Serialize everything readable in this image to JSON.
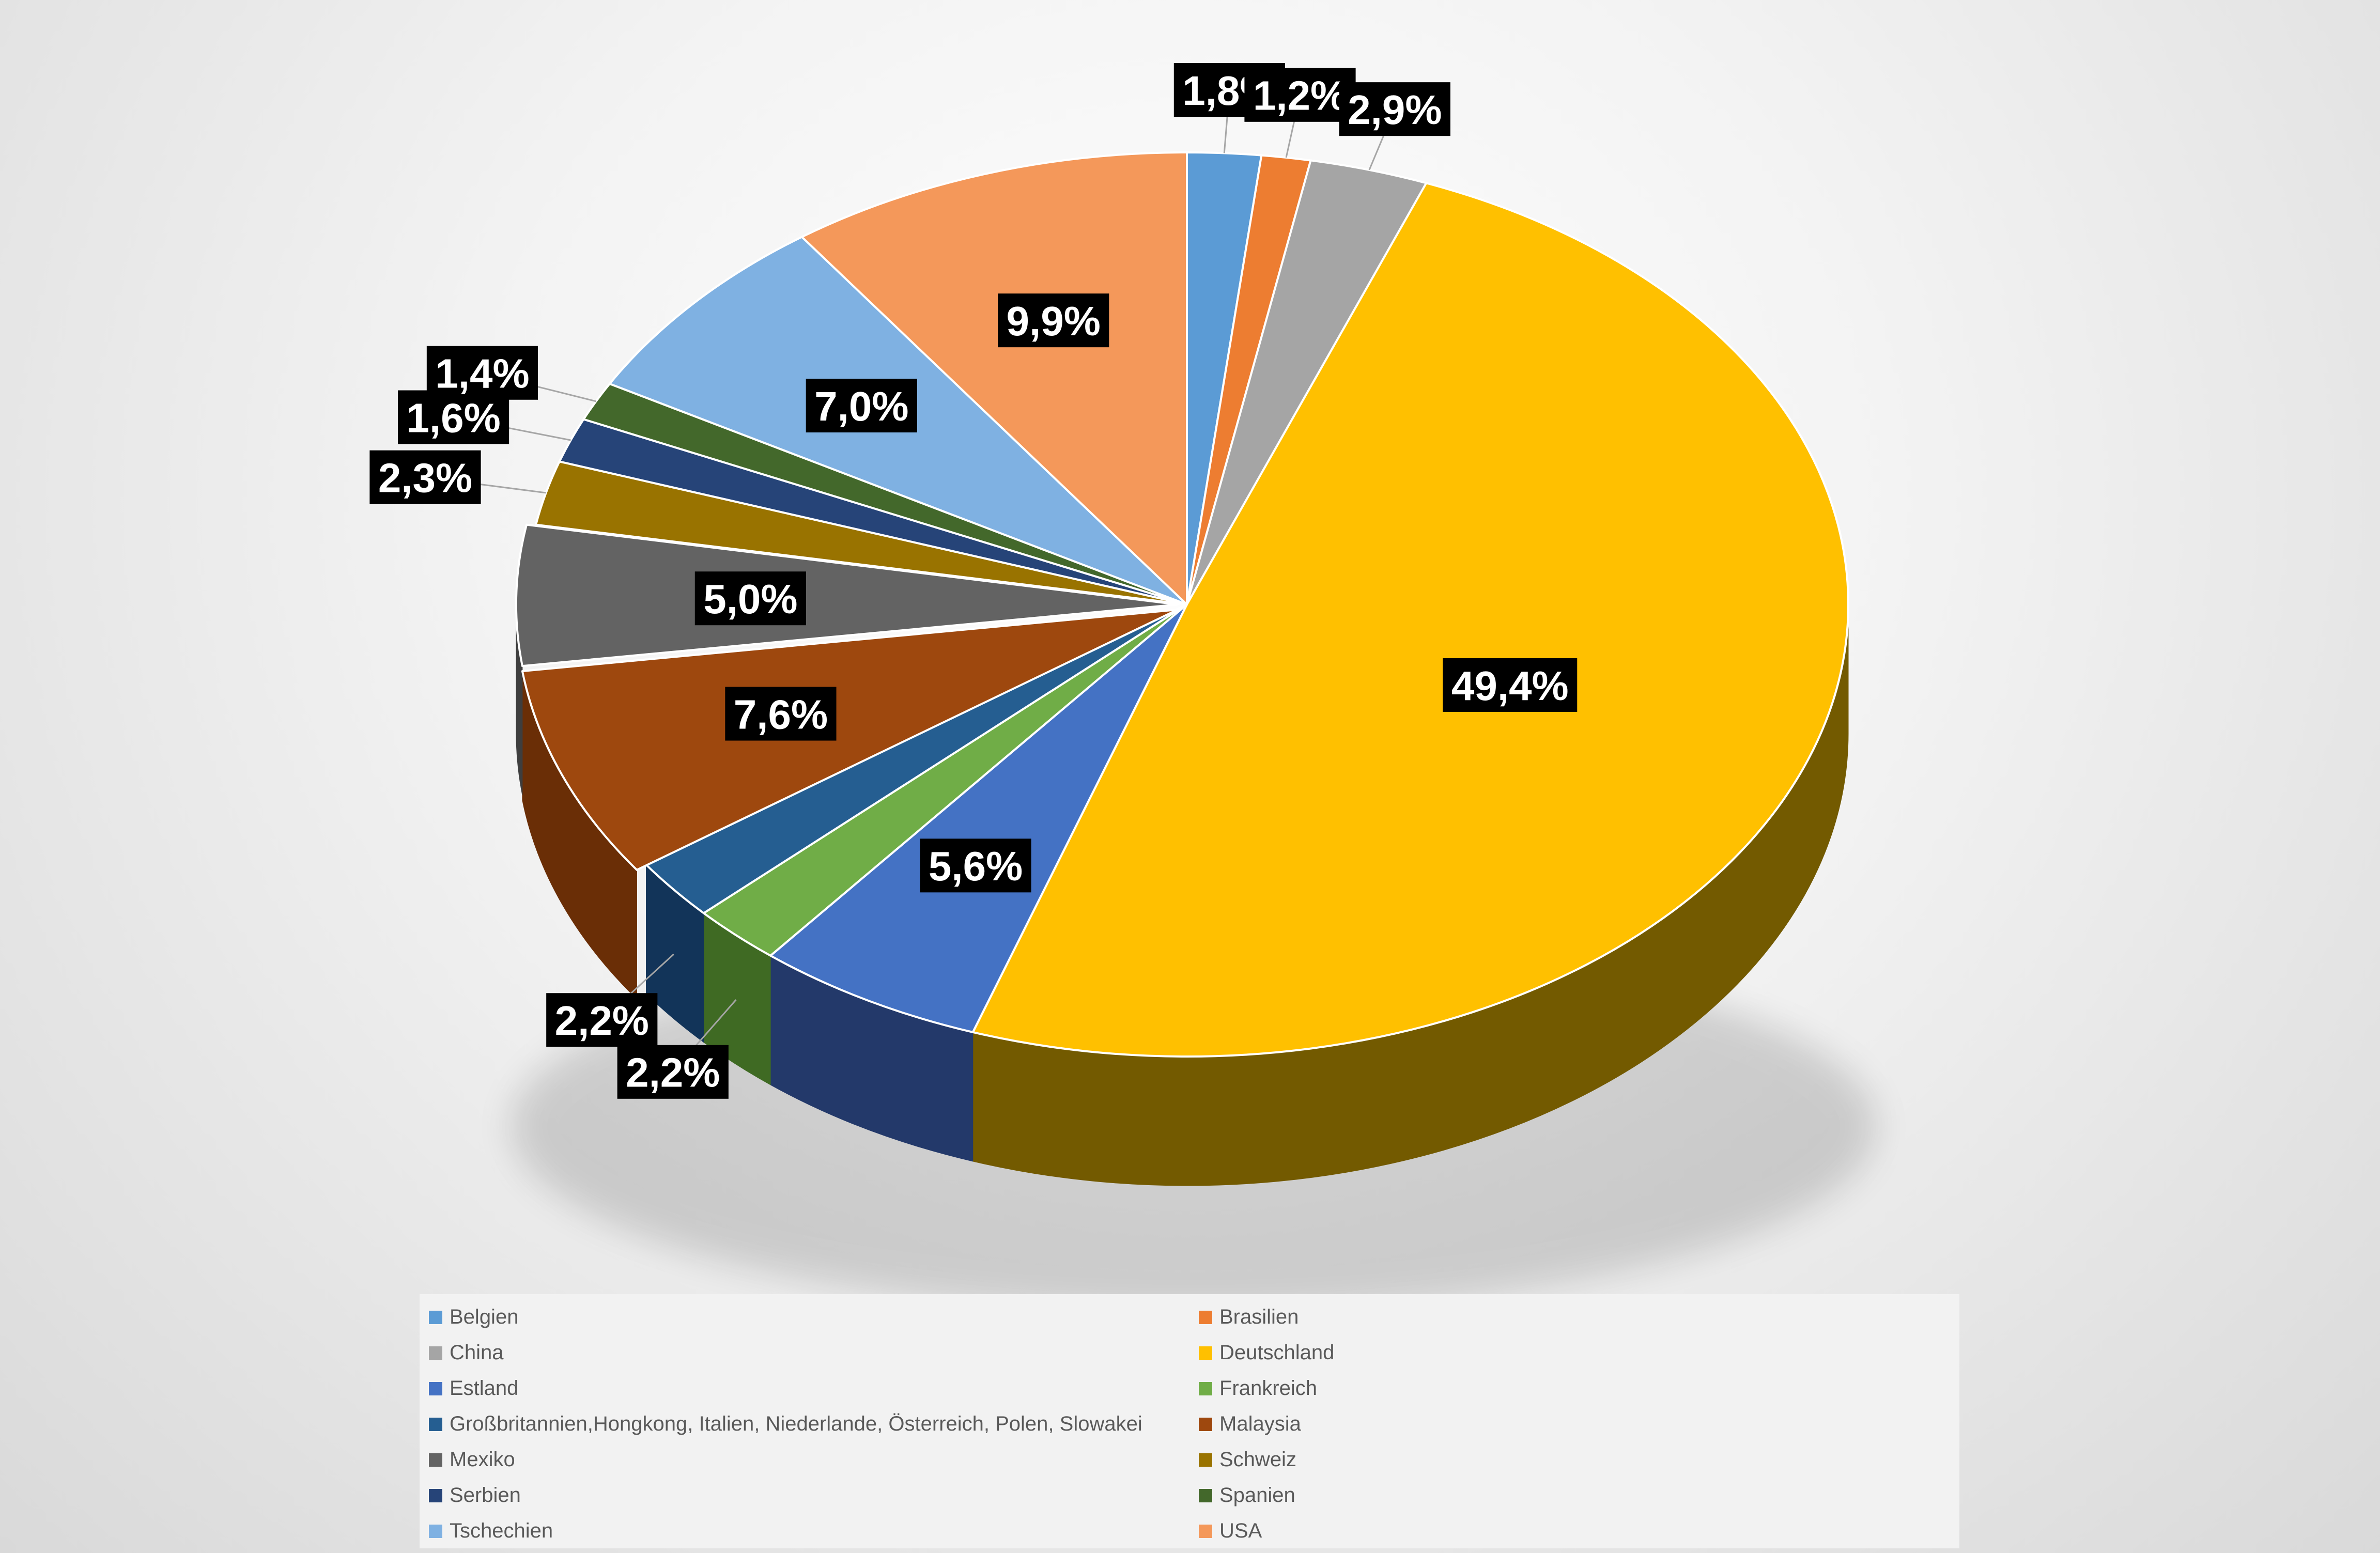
{
  "chart_data": {
    "type": "pie",
    "title": "",
    "style": "3d-exploded-pie",
    "slices": [
      {
        "name": "Belgien",
        "value": 1.8,
        "label": "1,8%",
        "color": "#5b9bd5",
        "side": "#3a6d9e"
      },
      {
        "name": "Brasilien",
        "value": 1.2,
        "label": "1,2%",
        "color": "#ed7d31",
        "side": "#a3531c"
      },
      {
        "name": "China",
        "value": 2.9,
        "label": "2,9%",
        "color": "#a5a5a5",
        "side": "#707070"
      },
      {
        "name": "Deutschland",
        "value": 49.4,
        "label": "49,4%",
        "color": "#ffc000",
        "side": "#735a00"
      },
      {
        "name": "Estland",
        "value": 5.6,
        "label": "5,6%",
        "color": "#4472c4",
        "side": "#23396a"
      },
      {
        "name": "Frankreich",
        "value": 2.2,
        "label": "2,2%",
        "color": "#70ad47",
        "side": "#3f6a23"
      },
      {
        "name": "Großbritannien,Hongkong, Italien, Niederlande, Österreich, Polen, Slowakei",
        "value": 2.2,
        "label": "2,2%",
        "color": "#255e91",
        "side": "#123459"
      },
      {
        "name": "Malaysia",
        "value": 7.6,
        "label": "7,6%",
        "color": "#9e480e",
        "side": "#6a2e06"
      },
      {
        "name": "Mexiko",
        "value": 5.0,
        "label": "5,0%",
        "color": "#636363",
        "side": "#3e3e3e"
      },
      {
        "name": "Schweiz",
        "value": 2.3,
        "label": "2,3%",
        "color": "#997300",
        "side": "#5e4600"
      },
      {
        "name": "Serbien",
        "value": 1.6,
        "label": "1,6%",
        "color": "#264478",
        "side": "#13244a"
      },
      {
        "name": "Spanien",
        "value": 1.4,
        "label": "1,4%",
        "color": "#43682b",
        "side": "#263d17"
      },
      {
        "name": "Tschechien",
        "value": 7.0,
        "label": "7,0%",
        "color": "#7fb1e2",
        "side": "#4e7fae"
      },
      {
        "name": "USA",
        "value": 9.9,
        "label": "9,9%",
        "color": "#f4985a",
        "side": "#b8663a"
      }
    ],
    "legend": {
      "placement": "bottom",
      "columns": 2
    }
  }
}
